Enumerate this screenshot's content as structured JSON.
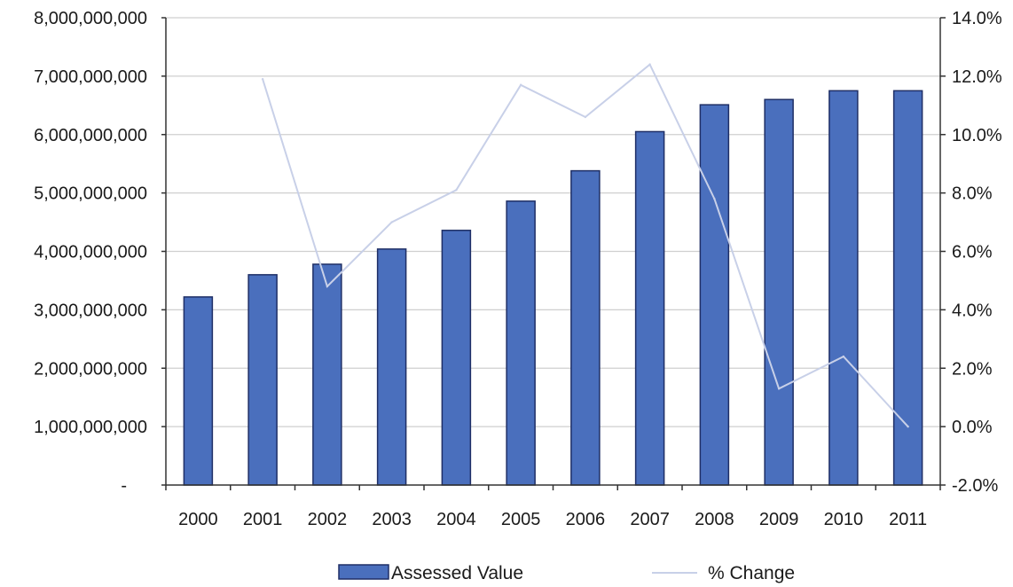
{
  "chart_data": {
    "type": "bar",
    "categories": [
      "2000",
      "2001",
      "2002",
      "2003",
      "2004",
      "2005",
      "2006",
      "2007",
      "2008",
      "2009",
      "2010",
      "2011"
    ],
    "series": [
      {
        "name": "Assessed Value",
        "type": "bar",
        "axis": "left",
        "color": "#4a6fbd",
        "values": [
          3220000000,
          3600000000,
          3780000000,
          4040000000,
          4360000000,
          4860000000,
          5380000000,
          6050000000,
          6510000000,
          6600000000,
          6750000000,
          6750000000
        ]
      },
      {
        "name": "% Change",
        "type": "line",
        "axis": "right",
        "color": "#c8d0e8",
        "values": [
          null,
          11.9,
          4.8,
          7.0,
          8.1,
          11.7,
          10.6,
          12.4,
          7.8,
          1.3,
          2.4,
          0.0
        ]
      }
    ],
    "y_left": {
      "ylim": [
        0,
        8000000000
      ],
      "ticks": [
        0,
        1000000000,
        2000000000,
        3000000000,
        4000000000,
        5000000000,
        6000000000,
        7000000000,
        8000000000
      ],
      "tick_labels": [
        "-",
        "1,000,000,000",
        "2,000,000,000",
        "3,000,000,000",
        "4,000,000,000",
        "5,000,000,000",
        "6,000,000,000",
        "7,000,000,000",
        "8,000,000,000"
      ]
    },
    "y_right": {
      "ylim": [
        -2.0,
        14.0
      ],
      "ticks": [
        -2,
        0,
        2,
        4,
        6,
        8,
        10,
        12,
        14
      ],
      "tick_labels": [
        "-2.0%",
        "0.0%",
        "2.0%",
        "4.0%",
        "6.0%",
        "8.0%",
        "10.0%",
        "12.0%",
        "14.0%"
      ]
    },
    "title": "",
    "xlabel": "",
    "ylabel": "",
    "grid": true,
    "grid_color": "#cfcfcf",
    "legend_position": "bottom"
  }
}
